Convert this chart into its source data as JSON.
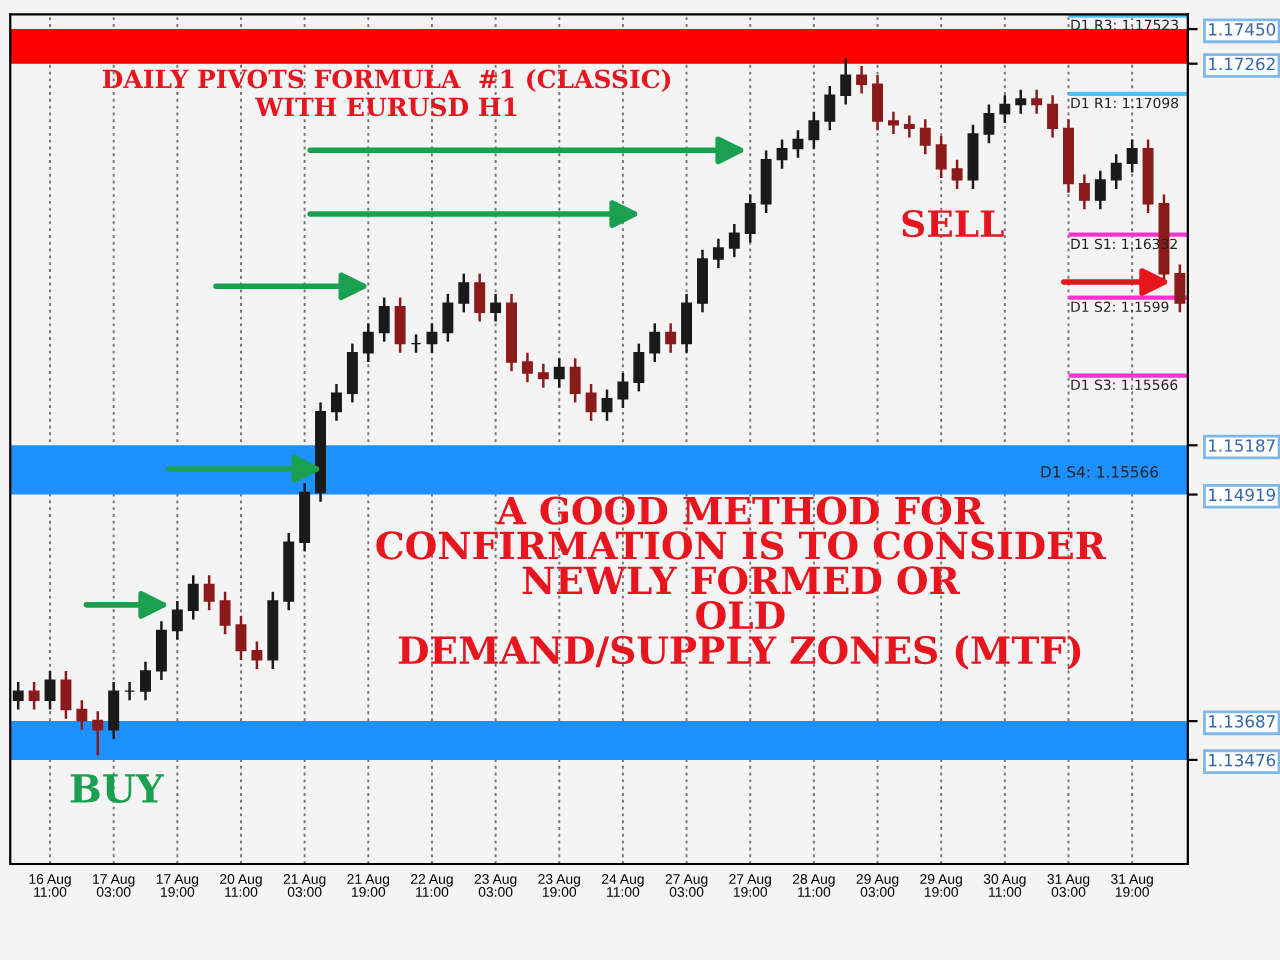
{
  "chart_data": {
    "type": "candlestick",
    "title": "DAILY PIVOTS FORMULA  #1 (CLASSIC)\nWITH EURUSD H1",
    "categories": [
      null,
      null,
      "16 Aug 11:00",
      null,
      null,
      null,
      "17 Aug 03:00",
      null,
      null,
      null,
      "17 Aug 19:00",
      null,
      null,
      null,
      "20 Aug 11:00",
      null,
      null,
      null,
      "21 Aug 03:00",
      null,
      null,
      null,
      "21 Aug 19:00",
      null,
      null,
      null,
      "22 Aug 11:00",
      null,
      null,
      null,
      "23 Aug 03:00",
      null,
      null,
      null,
      "23 Aug 19:00",
      null,
      null,
      null,
      "24 Aug 11:00",
      null,
      null,
      null,
      "27 Aug 03:00",
      null,
      null,
      null,
      "27 Aug 19:00",
      null,
      null,
      null,
      "28 Aug 11:00",
      null,
      null,
      null,
      "29 Aug 03:00",
      null,
      null,
      null,
      "29 Aug 19:00",
      null,
      null,
      null,
      "30 Aug 11:00",
      null,
      null,
      null,
      "31 Aug 03:00",
      null,
      null,
      null,
      "31 Aug 19:00",
      null,
      null,
      null
    ],
    "ohlc": [
      [
        1.138,
        1.139,
        1.1375,
        1.1385
      ],
      [
        1.1385,
        1.139,
        1.1375,
        1.138
      ],
      [
        1.138,
        1.1396,
        1.1375,
        1.1391
      ],
      [
        1.1391,
        1.1396,
        1.137,
        1.1375
      ],
      [
        1.1375,
        1.138,
        1.1364,
        1.1369
      ],
      [
        1.1369,
        1.1374,
        1.135,
        1.1364
      ],
      [
        1.1364,
        1.139,
        1.1359,
        1.1385
      ],
      [
        1.1385,
        1.139,
        1.138,
        1.1385
      ],
      [
        1.1385,
        1.1401,
        1.138,
        1.1396
      ],
      [
        1.1396,
        1.1423,
        1.1391,
        1.1418
      ],
      [
        1.1418,
        1.1434,
        1.1413,
        1.1429
      ],
      [
        1.1429,
        1.1448,
        1.1424,
        1.1443
      ],
      [
        1.1443,
        1.1448,
        1.1429,
        1.1434
      ],
      [
        1.1434,
        1.1439,
        1.1416,
        1.1421
      ],
      [
        1.1421,
        1.1426,
        1.1402,
        1.1407
      ],
      [
        1.1407,
        1.1412,
        1.1397,
        1.1402
      ],
      [
        1.1402,
        1.1439,
        1.1397,
        1.1434
      ],
      [
        1.1434,
        1.1471,
        1.1429,
        1.1466
      ],
      [
        1.1466,
        1.1498,
        1.1461,
        1.1493
      ],
      [
        1.1493,
        1.1542,
        1.1488,
        1.1537
      ],
      [
        1.1537,
        1.1552,
        1.1532,
        1.1547
      ],
      [
        1.1547,
        1.1574,
        1.1542,
        1.1569
      ],
      [
        1.1569,
        1.1585,
        1.1564,
        1.158
      ],
      [
        1.158,
        1.1599,
        1.1575,
        1.1594
      ],
      [
        1.1594,
        1.1599,
        1.1569,
        1.1574
      ],
      [
        1.1574,
        1.1579,
        1.1569,
        1.1574
      ],
      [
        1.1574,
        1.1585,
        1.1569,
        1.158
      ],
      [
        1.158,
        1.1601,
        1.1575,
        1.1596
      ],
      [
        1.1596,
        1.1612,
        1.1591,
        1.1607
      ],
      [
        1.1607,
        1.1612,
        1.1586,
        1.1591
      ],
      [
        1.1591,
        1.1601,
        1.1586,
        1.1596
      ],
      [
        1.1596,
        1.1601,
        1.1559,
        1.1564
      ],
      [
        1.1564,
        1.1569,
        1.1553,
        1.1558
      ],
      [
        1.1558,
        1.1563,
        1.155,
        1.1555
      ],
      [
        1.1555,
        1.1566,
        1.155,
        1.1561
      ],
      [
        1.1561,
        1.1566,
        1.1542,
        1.1547
      ],
      [
        1.1547,
        1.1552,
        1.1532,
        1.1537
      ],
      [
        1.1537,
        1.1549,
        1.1532,
        1.1544
      ],
      [
        1.1544,
        1.1558,
        1.1539,
        1.1553
      ],
      [
        1.1553,
        1.1574,
        1.1548,
        1.1569
      ],
      [
        1.1569,
        1.1585,
        1.1564,
        1.158
      ],
      [
        1.158,
        1.1585,
        1.1569,
        1.1574
      ],
      [
        1.1574,
        1.1601,
        1.1569,
        1.1596
      ],
      [
        1.1596,
        1.1625,
        1.1591,
        1.162
      ],
      [
        1.162,
        1.1631,
        1.1615,
        1.1626
      ],
      [
        1.1626,
        1.1639,
        1.1621,
        1.1634
      ],
      [
        1.1634,
        1.1655,
        1.1629,
        1.165
      ],
      [
        1.165,
        1.1679,
        1.1645,
        1.1674
      ],
      [
        1.1674,
        1.1685,
        1.1669,
        1.168
      ],
      [
        1.168,
        1.169,
        1.1675,
        1.1685
      ],
      [
        1.1685,
        1.17,
        1.168,
        1.1695
      ],
      [
        1.1695,
        1.1714,
        1.169,
        1.1709
      ],
      [
        1.1709,
        1.1729,
        1.1704,
        1.172
      ],
      [
        1.172,
        1.1725,
        1.171,
        1.1715
      ],
      [
        1.1715,
        1.172,
        1.169,
        1.1695
      ],
      [
        1.1695,
        1.17,
        1.1688,
        1.1693
      ],
      [
        1.1693,
        1.1698,
        1.1686,
        1.1691
      ],
      [
        1.1691,
        1.1696,
        1.1677,
        1.1682
      ],
      [
        1.1682,
        1.1687,
        1.1664,
        1.1669
      ],
      [
        1.1669,
        1.1674,
        1.1658,
        1.1663
      ],
      [
        1.1663,
        1.1693,
        1.1658,
        1.1688
      ],
      [
        1.1688,
        1.1704,
        1.1683,
        1.1699
      ],
      [
        1.1699,
        1.1709,
        1.1694,
        1.1704
      ],
      [
        1.1704,
        1.1712,
        1.1699,
        1.1707
      ],
      [
        1.1707,
        1.1712,
        1.1699,
        1.1704
      ],
      [
        1.1704,
        1.1709,
        1.1686,
        1.1691
      ],
      [
        1.1691,
        1.1696,
        1.1656,
        1.1661
      ],
      [
        1.1661,
        1.1666,
        1.1647,
        1.1652
      ],
      [
        1.1652,
        1.1668,
        1.1647,
        1.1663
      ],
      [
        1.1663,
        1.1677,
        1.1658,
        1.1672
      ],
      [
        1.1672,
        1.1685,
        1.1667,
        1.168
      ],
      [
        1.168,
        1.1685,
        1.1645,
        1.165
      ],
      [
        1.165,
        1.1655,
        1.1607,
        1.1612
      ],
      [
        1.1612,
        1.1617,
        1.1591,
        1.1596
      ]
    ],
    "colors": [
      "#1a1a1a",
      "#8b1a1a",
      "#1a1a1a",
      "#8b1a1a",
      "#8b1a1a",
      "#8b1a1a",
      "#1a1a1a",
      "#1a1a1a",
      "#1a1a1a",
      "#1a1a1a",
      "#1a1a1a",
      "#1a1a1a",
      "#8b1a1a",
      "#8b1a1a",
      "#8b1a1a",
      "#8b1a1a",
      "#1a1a1a",
      "#1a1a1a",
      "#1a1a1a",
      "#1a1a1a",
      "#1a1a1a",
      "#1a1a1a",
      "#1a1a1a",
      "#1a1a1a",
      "#8b1a1a",
      "#1a1a1a",
      "#1a1a1a",
      "#1a1a1a",
      "#1a1a1a",
      "#8b1a1a",
      "#1a1a1a",
      "#8b1a1a",
      "#8b1a1a",
      "#8b1a1a",
      "#1a1a1a",
      "#8b1a1a",
      "#8b1a1a",
      "#1a1a1a",
      "#1a1a1a",
      "#1a1a1a",
      "#1a1a1a",
      "#8b1a1a",
      "#1a1a1a",
      "#1a1a1a",
      "#1a1a1a",
      "#1a1a1a",
      "#1a1a1a",
      "#1a1a1a",
      "#1a1a1a",
      "#1a1a1a",
      "#1a1a1a",
      "#1a1a1a",
      "#1a1a1a",
      "#8b1a1a",
      "#8b1a1a",
      "#8b1a1a",
      "#8b1a1a",
      "#8b1a1a",
      "#8b1a1a",
      "#8b1a1a",
      "#1a1a1a",
      "#1a1a1a",
      "#1a1a1a",
      "#1a1a1a",
      "#8b1a1a",
      "#8b1a1a",
      "#8b1a1a",
      "#8b1a1a",
      "#1a1a1a",
      "#1a1a1a",
      "#1a1a1a",
      "#8b1a1a",
      "#8b1a1a",
      "#8b1a1a"
    ],
    "ylim": [
      1.1291,
      1.1753
    ],
    "yticks": [
      {
        "value": 1.1745,
        "label": "1.17450"
      },
      {
        "value": 1.17262,
        "label": "1.17262"
      },
      {
        "value": 1.15187,
        "label": "1.15187"
      },
      {
        "value": 1.14919,
        "label": "1.14919"
      },
      {
        "value": 1.13687,
        "label": "1.13687"
      },
      {
        "value": 1.13476,
        "label": "1.13476"
      }
    ],
    "bands": [
      {
        "axis": "y",
        "from": 1.17262,
        "to": 1.1745,
        "color": "#ff0000"
      },
      {
        "axis": "y",
        "from": 1.14919,
        "to": 1.15187,
        "color": "#1e90ff"
      },
      {
        "axis": "y",
        "from": 1.13476,
        "to": 1.13687,
        "color": "#1e90ff"
      }
    ],
    "ref_lines": [
      {
        "axis": "y",
        "value": 1.17523,
        "label": "D1 R3: 1.17523",
        "color": "#4fc3f7"
      },
      {
        "axis": "y",
        "value": 1.17098,
        "label": "D1 R1: 1.17098",
        "color": "#4fc3f7"
      },
      {
        "axis": "y",
        "value": 1.16332,
        "label": "D1 S1: 1.16332",
        "color": "#ff33cc"
      },
      {
        "axis": "y",
        "value": 1.1599,
        "label": "D1 S2: 1.1599",
        "color": "#ff33cc"
      },
      {
        "axis": "y",
        "value": 1.15566,
        "label": "D1 S3: 1.15566",
        "color": "#ff33cc"
      }
    ],
    "annotations": [
      "A GOOD METHOD FOR\nCONFIRMATION IS TO CONSIDER\nNEWLY FORMED OR\nOLD\nDEMAND/SUPPLY ZONES (MTF)",
      "BUY",
      "SELL",
      "D1 S4: 1.15566"
    ],
    "grid": "x"
  }
}
